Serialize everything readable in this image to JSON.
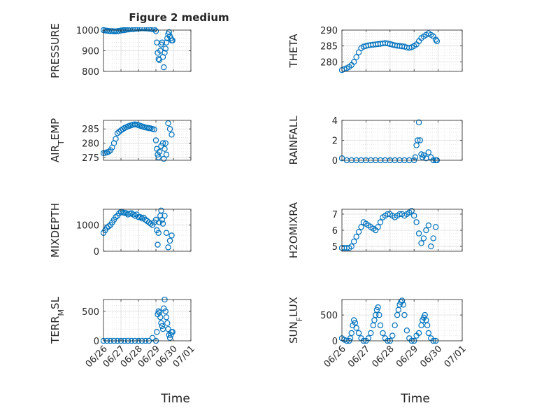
{
  "figure": {
    "title": "Figure 2 medium",
    "xlabel": "Time",
    "marker_color": "#0072BD",
    "axis_color": "#262626",
    "grid_color": "#dcdcdc"
  },
  "chart_data": [
    {
      "type": "scatter",
      "ylabel": "PRESSURE",
      "xlim": [
        "06/26",
        "07/01"
      ],
      "ylim": [
        800,
        1000
      ],
      "yticks": [
        800,
        900,
        1000
      ],
      "xticks": [],
      "grid": true,
      "title": "Figure 2 medium",
      "series": [
        {
          "x_days": [
            0,
            0.1,
            0.2,
            0.3,
            0.4,
            0.5,
            0.6,
            0.7,
            0.8,
            0.9,
            1.0,
            1.1,
            1.2,
            1.3,
            1.4,
            1.5,
            1.6,
            1.7,
            1.8,
            1.9,
            2.0,
            2.1,
            2.2,
            2.3,
            2.4,
            2.5,
            2.6,
            2.7,
            2.8,
            2.9,
            3.0,
            3.05,
            3.1,
            3.15,
            3.2,
            3.25,
            3.3,
            3.35,
            3.4,
            3.45,
            3.5,
            3.55,
            3.6,
            3.65,
            3.7,
            3.75,
            3.8,
            3.85,
            3.9,
            3.95
          ],
          "y": [
            1000,
            998,
            997,
            996,
            995,
            995,
            994,
            994,
            995,
            996,
            998,
            999,
            1000,
            1002,
            1003,
            1004,
            1005,
            1005,
            1006,
            1007,
            1008,
            1008,
            1009,
            1009,
            1008,
            1008,
            1007,
            1006,
            1005,
            1003,
            995,
            940,
            890,
            860,
            855,
            900,
            930,
            940,
            870,
            820,
            890,
            910,
            940,
            960,
            980,
            990,
            970,
            960,
            950,
            950
          ]
        }
      ]
    },
    {
      "type": "scatter",
      "ylabel": "THETA",
      "xlim": [
        "06/26",
        "07/01"
      ],
      "ylim": [
        277,
        290
      ],
      "yticks": [
        280,
        285,
        290
      ],
      "xticks": [],
      "grid": true,
      "series": [
        {
          "x_days": [
            0,
            0.1,
            0.2,
            0.3,
            0.4,
            0.5,
            0.6,
            0.7,
            0.8,
            0.9,
            1.0,
            1.1,
            1.2,
            1.3,
            1.4,
            1.5,
            1.6,
            1.7,
            1.8,
            1.9,
            2.0,
            2.1,
            2.2,
            2.3,
            2.4,
            2.5,
            2.6,
            2.7,
            2.8,
            2.9,
            3.0,
            3.1,
            3.2,
            3.3,
            3.4,
            3.5,
            3.6,
            3.7,
            3.8,
            3.9,
            3.95
          ],
          "y": [
            277.4,
            277.7,
            278.0,
            278.4,
            279,
            280,
            281.5,
            283,
            284.3,
            284.8,
            285.0,
            285.2,
            285.3,
            285.4,
            285.5,
            285.6,
            285.7,
            285.8,
            285.9,
            285.8,
            285.6,
            285.4,
            285.2,
            285.1,
            285.0,
            284.9,
            284.8,
            284.5,
            284.4,
            284.6,
            285.0,
            285.5,
            286.5,
            287.5,
            288.0,
            288.5,
            289.0,
            288.5,
            288.0,
            287.0,
            286.5
          ]
        }
      ]
    },
    {
      "type": "scatter",
      "ylabel": "AIR_TEMP",
      "xlim": [
        "06/26",
        "07/01"
      ],
      "ylim": [
        274,
        288
      ],
      "yticks": [
        275,
        280,
        285
      ],
      "xticks": [],
      "grid": true,
      "series": [
        {
          "x_days": [
            0,
            0.1,
            0.2,
            0.3,
            0.4,
            0.5,
            0.6,
            0.7,
            0.8,
            0.9,
            1.0,
            1.1,
            1.2,
            1.3,
            1.4,
            1.5,
            1.6,
            1.7,
            1.8,
            1.9,
            2.0,
            2.1,
            2.2,
            2.3,
            2.4,
            2.5,
            2.6,
            2.7,
            2.8,
            2.9,
            3.0,
            3.05,
            3.1,
            3.15,
            3.2,
            3.3,
            3.4,
            3.45,
            3.5,
            3.55,
            3.6,
            3.7,
            3.8,
            3.9
          ],
          "y": [
            276.5,
            276.6,
            276.8,
            277.0,
            277.5,
            278.5,
            280,
            281.5,
            283.5,
            284.0,
            284.5,
            284.9,
            285.3,
            285.6,
            285.9,
            286.1,
            286.3,
            286.5,
            286.6,
            286.5,
            286.3,
            286.1,
            285.9,
            285.7,
            285.5,
            285.4,
            285.3,
            285.2,
            285.0,
            284.8,
            281,
            278,
            276,
            275,
            277,
            279,
            280,
            274.5,
            278,
            280,
            276,
            287,
            285,
            283
          ]
        }
      ]
    },
    {
      "type": "scatter",
      "ylabel": "RAINFALL",
      "xlim": [
        "06/26",
        "07/01"
      ],
      "ylim": [
        0,
        4
      ],
      "yticks": [
        0,
        2,
        4
      ],
      "xticks": [],
      "grid": true,
      "series": [
        {
          "x_days": [
            0,
            0.2,
            0.4,
            0.6,
            0.8,
            1.0,
            1.2,
            1.4,
            1.6,
            1.8,
            2.0,
            2.2,
            2.4,
            2.6,
            2.8,
            3.0,
            3.05,
            3.1,
            3.15,
            3.2,
            3.25,
            3.3,
            3.35,
            3.4,
            3.5,
            3.6,
            3.7,
            3.8,
            3.9,
            3.95
          ],
          "y": [
            0.2,
            0,
            0,
            0,
            0,
            0,
            0,
            0,
            0,
            0,
            0,
            0,
            0,
            0,
            0,
            0,
            0.3,
            1.5,
            2.0,
            3.8,
            2.0,
            0.6,
            0.3,
            0.5,
            0.2,
            0.8,
            0.3,
            0,
            0,
            0
          ]
        }
      ]
    },
    {
      "type": "scatter",
      "ylabel": "MIXDEPTH",
      "xlim": [
        "06/26",
        "07/01"
      ],
      "ylim": [
        0,
        1600
      ],
      "yticks": [
        0,
        1000
      ],
      "xticks": [],
      "grid": true,
      "series": [
        {
          "x_days": [
            0,
            0.1,
            0.2,
            0.3,
            0.4,
            0.5,
            0.6,
            0.7,
            0.8,
            0.9,
            1.0,
            1.1,
            1.2,
            1.3,
            1.4,
            1.5,
            1.6,
            1.7,
            1.8,
            1.9,
            2.0,
            2.1,
            2.2,
            2.3,
            2.4,
            2.5,
            2.6,
            2.7,
            2.8,
            2.9,
            3.0,
            3.05,
            3.1,
            3.15,
            3.2,
            3.25,
            3.3,
            3.35,
            3.4,
            3.5,
            3.6,
            3.7,
            3.8,
            3.9
          ],
          "y": [
            700,
            800,
            900,
            950,
            1000,
            1100,
            1200,
            1300,
            1350,
            1450,
            1500,
            1480,
            1460,
            1450,
            1400,
            1430,
            1450,
            1400,
            1350,
            1400,
            1300,
            1300,
            1250,
            1280,
            1200,
            1150,
            1100,
            1050,
            1000,
            1100,
            1200,
            800,
            250,
            700,
            1100,
            1350,
            1550,
            1200,
            1050,
            1350,
            700,
            150,
            400,
            600
          ]
        }
      ]
    },
    {
      "type": "scatter",
      "ylabel": "H2OMIXRA",
      "xlim": [
        "06/26",
        "07/01"
      ],
      "ylim": [
        4.7,
        7.3
      ],
      "yticks": [
        5,
        6,
        7
      ],
      "xticks": [],
      "grid": true,
      "series": [
        {
          "x_days": [
            0,
            0.1,
            0.2,
            0.3,
            0.4,
            0.5,
            0.6,
            0.7,
            0.8,
            0.9,
            1.0,
            1.1,
            1.2,
            1.3,
            1.4,
            1.5,
            1.6,
            1.7,
            1.8,
            1.9,
            2.0,
            2.1,
            2.2,
            2.3,
            2.4,
            2.5,
            2.6,
            2.7,
            2.8,
            2.9,
            3.0,
            3.1,
            3.2,
            3.3,
            3.4,
            3.5,
            3.6,
            3.7,
            3.8,
            3.9
          ],
          "y": [
            4.9,
            4.9,
            4.9,
            4.9,
            5.0,
            5.3,
            5.6,
            5.9,
            6.2,
            6.5,
            6.4,
            6.3,
            6.2,
            6.1,
            6.0,
            6.2,
            6.5,
            6.8,
            6.9,
            7.0,
            7.0,
            6.9,
            6.8,
            6.9,
            7.0,
            7.0,
            6.9,
            7.0,
            7.1,
            7.2,
            6.9,
            6.5,
            5.8,
            5.2,
            5.5,
            6.0,
            6.3,
            5.0,
            5.5,
            6.2
          ]
        }
      ]
    },
    {
      "type": "scatter",
      "ylabel": "TERR_MSL",
      "xlim": [
        "06/26",
        "07/01"
      ],
      "ylim": [
        0,
        700
      ],
      "yticks": [
        0,
        500
      ],
      "xticks": [
        "06/26",
        "06/27",
        "06/28",
        "06/29",
        "06/30",
        "07/01"
      ],
      "grid": true,
      "series": [
        {
          "x_days": [
            0,
            0.2,
            0.4,
            0.6,
            0.8,
            1.0,
            1.2,
            1.4,
            1.6,
            1.8,
            2.0,
            2.2,
            2.4,
            2.6,
            2.8,
            3.0,
            3.05,
            3.1,
            3.15,
            3.2,
            3.25,
            3.3,
            3.35,
            3.4,
            3.45,
            3.5,
            3.55,
            3.6,
            3.65,
            3.7,
            3.75,
            3.8,
            3.85,
            3.9,
            3.95
          ],
          "y": [
            0,
            0,
            0,
            0,
            0,
            0,
            0,
            0,
            0,
            0,
            0,
            0,
            0,
            0,
            50,
            0,
            150,
            450,
            500,
            480,
            400,
            300,
            250,
            200,
            550,
            700,
            500,
            400,
            300,
            200,
            100,
            50,
            100,
            150,
            150
          ]
        }
      ]
    },
    {
      "type": "scatter",
      "ylabel": "SUN_FLUX",
      "xlim": [
        "06/26",
        "07/01"
      ],
      "ylim": [
        0,
        800
      ],
      "yticks": [
        0,
        500
      ],
      "xticks": [
        "06/26",
        "06/27",
        "06/28",
        "06/29",
        "06/30",
        "07/01"
      ],
      "grid": true,
      "series": [
        {
          "x_days": [
            0,
            0.1,
            0.2,
            0.3,
            0.35,
            0.4,
            0.45,
            0.5,
            0.55,
            0.6,
            0.7,
            0.8,
            0.9,
            1.0,
            1.1,
            1.2,
            1.3,
            1.35,
            1.4,
            1.45,
            1.5,
            1.55,
            1.6,
            1.7,
            1.8,
            1.9,
            2.0,
            2.1,
            2.2,
            2.3,
            2.35,
            2.4,
            2.45,
            2.5,
            2.55,
            2.6,
            2.7,
            2.8,
            2.9,
            3.0,
            3.1,
            3.2,
            3.3,
            3.35,
            3.4,
            3.45,
            3.5,
            3.55,
            3.6,
            3.7,
            3.8,
            3.9
          ],
          "y": [
            50,
            20,
            0,
            0,
            50,
            150,
            300,
            400,
            350,
            250,
            150,
            50,
            0,
            0,
            50,
            150,
            300,
            400,
            500,
            600,
            650,
            500,
            300,
            150,
            50,
            0,
            0,
            100,
            300,
            500,
            600,
            700,
            750,
            780,
            700,
            500,
            200,
            50,
            0,
            0,
            100,
            150,
            300,
            400,
            450,
            500,
            400,
            300,
            150,
            50,
            0,
            0
          ]
        }
      ]
    }
  ]
}
